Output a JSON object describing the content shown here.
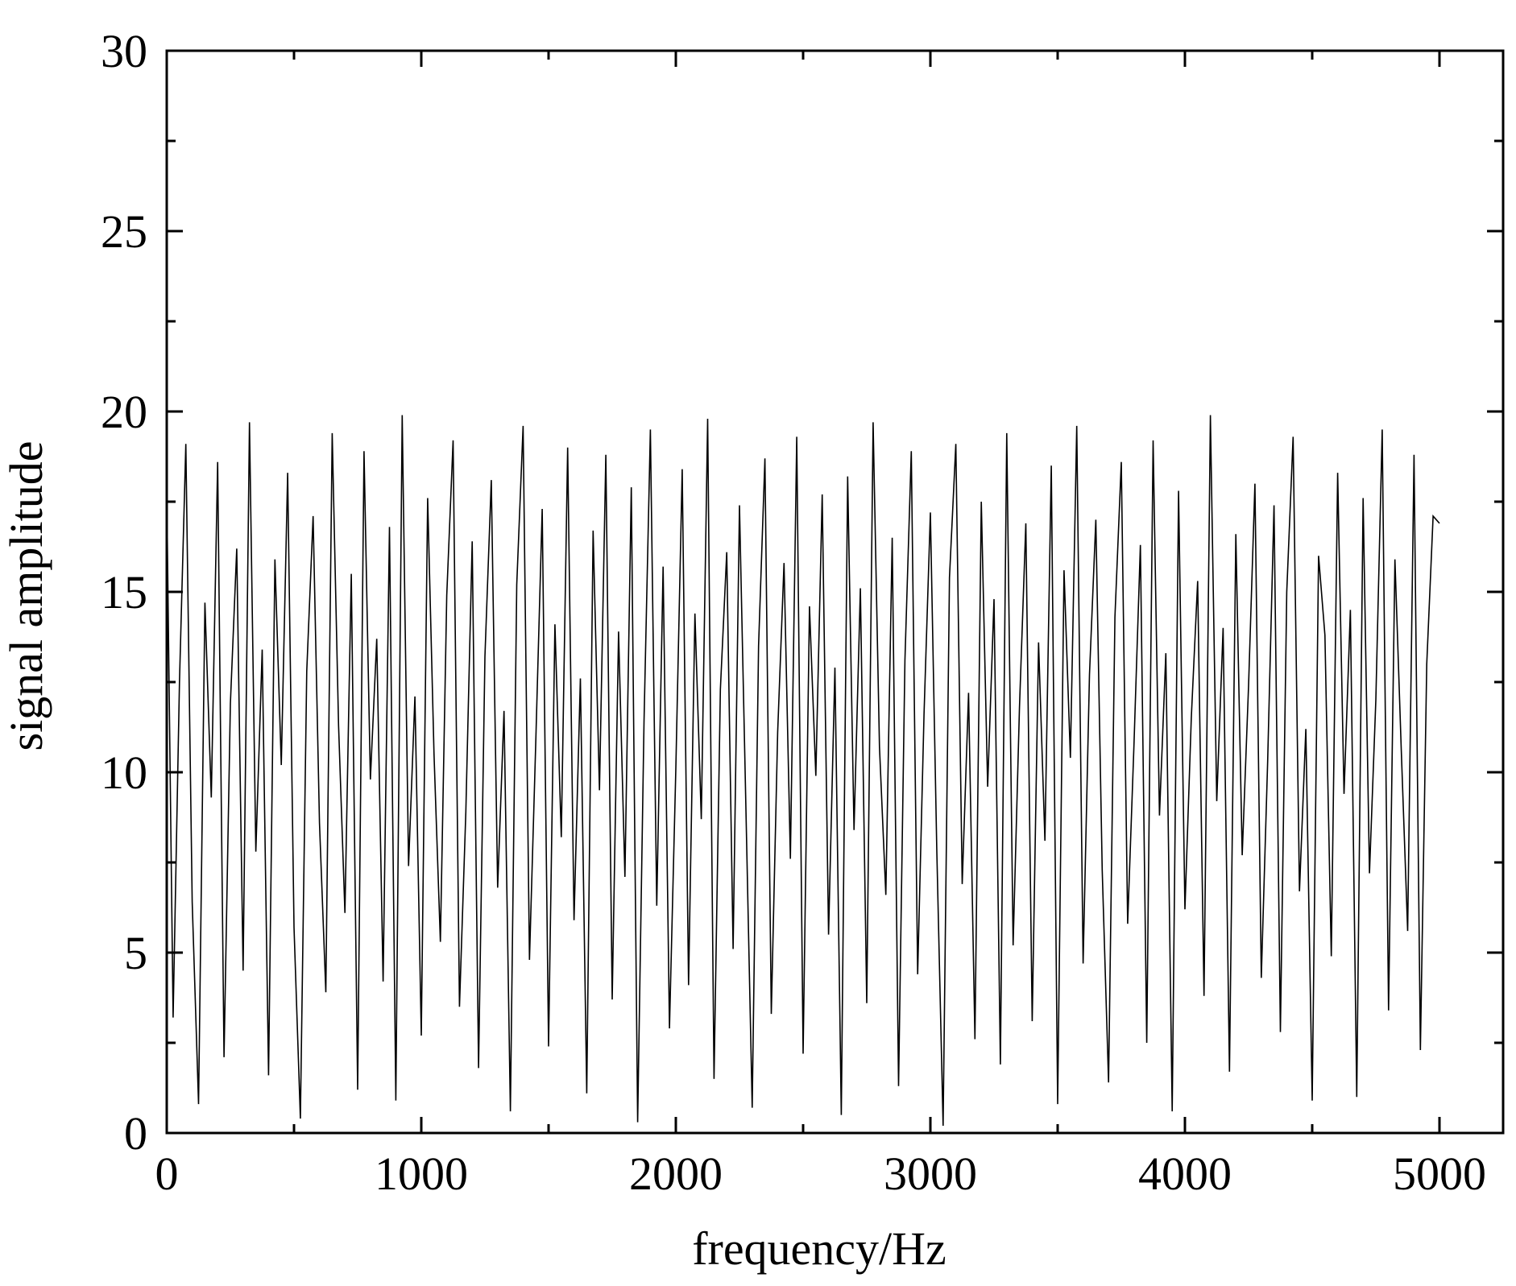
{
  "chart_data": {
    "type": "line",
    "xlabel": "frequency/Hz",
    "ylabel": "signal amplitude",
    "x": [
      0,
      25,
      50,
      75,
      100,
      125,
      150,
      175,
      200,
      225,
      250,
      275,
      300,
      325,
      350,
      375,
      400,
      425,
      450,
      475,
      500,
      525,
      550,
      575,
      600,
      625,
      650,
      675,
      700,
      725,
      750,
      775,
      800,
      825,
      850,
      875,
      900,
      925,
      950,
      975,
      1000,
      1025,
      1050,
      1075,
      1100,
      1125,
      1150,
      1175,
      1200,
      1225,
      1250,
      1275,
      1300,
      1325,
      1350,
      1375,
      1400,
      1425,
      1450,
      1475,
      1500,
      1525,
      1550,
      1575,
      1600,
      1625,
      1650,
      1675,
      1700,
      1725,
      1750,
      1775,
      1800,
      1825,
      1850,
      1875,
      1900,
      1925,
      1950,
      1975,
      2000,
      2025,
      2050,
      2075,
      2100,
      2125,
      2150,
      2175,
      2200,
      2225,
      2250,
      2275,
      2300,
      2325,
      2350,
      2375,
      2400,
      2425,
      2450,
      2475,
      2500,
      2525,
      2550,
      2575,
      2600,
      2625,
      2650,
      2675,
      2700,
      2725,
      2750,
      2775,
      2800,
      2825,
      2850,
      2875,
      2900,
      2925,
      2950,
      2975,
      3000,
      3025,
      3050,
      3075,
      3100,
      3125,
      3150,
      3175,
      3200,
      3225,
      3250,
      3275,
      3300,
      3325,
      3350,
      3375,
      3400,
      3425,
      3450,
      3475,
      3500,
      3525,
      3550,
      3575,
      3600,
      3625,
      3650,
      3675,
      3700,
      3725,
      3750,
      3775,
      3800,
      3825,
      3850,
      3875,
      3900,
      3925,
      3950,
      3975,
      4000,
      4025,
      4050,
      4075,
      4100,
      4125,
      4150,
      4175,
      4200,
      4225,
      4250,
      4275,
      4300,
      4325,
      4350,
      4375,
      4400,
      4425,
      4450,
      4475,
      4500,
      4525,
      4550,
      4575,
      4600,
      4625,
      4650,
      4675,
      4700,
      4725,
      4750,
      4775,
      4800,
      4825,
      4850,
      4875,
      4900,
      4925,
      4950,
      4975,
      5000
    ],
    "series": [
      {
        "name": "signal amplitude",
        "color": "#000000",
        "values": [
          17.8,
          3.2,
          12.5,
          19.1,
          6.4,
          0.8,
          14.7,
          9.3,
          18.6,
          2.1,
          11.9,
          16.2,
          4.5,
          19.7,
          7.8,
          13.4,
          1.6,
          15.9,
          10.2,
          18.3,
          5.7,
          0.4,
          12.8,
          17.1,
          8.6,
          3.9,
          19.4,
          11.3,
          6.1,
          15.5,
          1.2,
          18.9,
          9.8,
          13.7,
          4.2,
          16.8,
          0.9,
          19.9,
          7.4,
          12.1,
          2.7,
          17.6,
          10.5,
          5.3,
          14.9,
          19.2,
          3.5,
          8.9,
          16.4,
          1.8,
          13.2,
          18.1,
          6.8,
          11.7,
          0.6,
          15.2,
          19.6,
          4.8,
          10.9,
          17.3,
          2.4,
          14.1,
          8.2,
          19.0,
          5.9,
          12.6,
          1.1,
          16.7,
          9.5,
          18.8,
          3.7,
          13.9,
          7.1,
          17.9,
          0.3,
          11.4,
          19.5,
          6.3,
          15.7,
          2.9,
          10.1,
          18.4,
          4.1,
          14.4,
          8.7,
          19.8,
          1.5,
          12.3,
          16.1,
          5.1,
          17.4,
          9.1,
          0.7,
          13.5,
          18.7,
          3.3,
          11.1,
          15.8,
          7.6,
          19.3,
          2.2,
          14.6,
          9.9,
          17.7,
          5.5,
          12.9,
          0.5,
          18.2,
          8.4,
          15.1,
          3.6,
          19.7,
          10.7,
          6.6,
          16.5,
          1.3,
          13.1,
          18.9,
          4.4,
          11.6,
          17.2,
          7.9,
          0.2,
          15.4,
          19.1,
          6.9,
          12.2,
          2.6,
          17.5,
          9.6,
          14.8,
          1.9,
          19.4,
          5.2,
          11.8,
          16.9,
          3.1,
          13.6,
          8.1,
          18.5,
          0.8,
          15.6,
          10.4,
          19.6,
          4.7,
          12.7,
          17.0,
          7.3,
          1.4,
          14.3,
          18.6,
          5.8,
          10.8,
          16.3,
          2.5,
          19.2,
          8.8,
          13.3,
          0.6,
          17.8,
          6.2,
          11.5,
          15.3,
          3.8,
          19.9,
          9.2,
          14.0,
          1.7,
          16.6,
          7.7,
          12.4,
          18.0,
          4.3,
          10.3,
          17.4,
          2.8,
          15.0,
          19.3,
          6.7,
          11.2,
          0.9,
          16.0,
          13.8,
          4.9,
          18.3,
          9.4,
          14.5,
          1.0,
          17.6,
          7.2,
          12.0,
          19.5,
          3.4,
          15.9,
          10.6,
          5.6,
          18.8,
          2.3,
          13.0,
          17.1,
          16.9
        ]
      }
    ],
    "xlim": [
      0,
      5250
    ],
    "xticks": [
      0,
      1000,
      2000,
      3000,
      4000,
      5000
    ],
    "ylim": [
      0,
      30
    ],
    "yticks": [
      0,
      5,
      10,
      15,
      20,
      25,
      30
    ],
    "grid": false
  }
}
